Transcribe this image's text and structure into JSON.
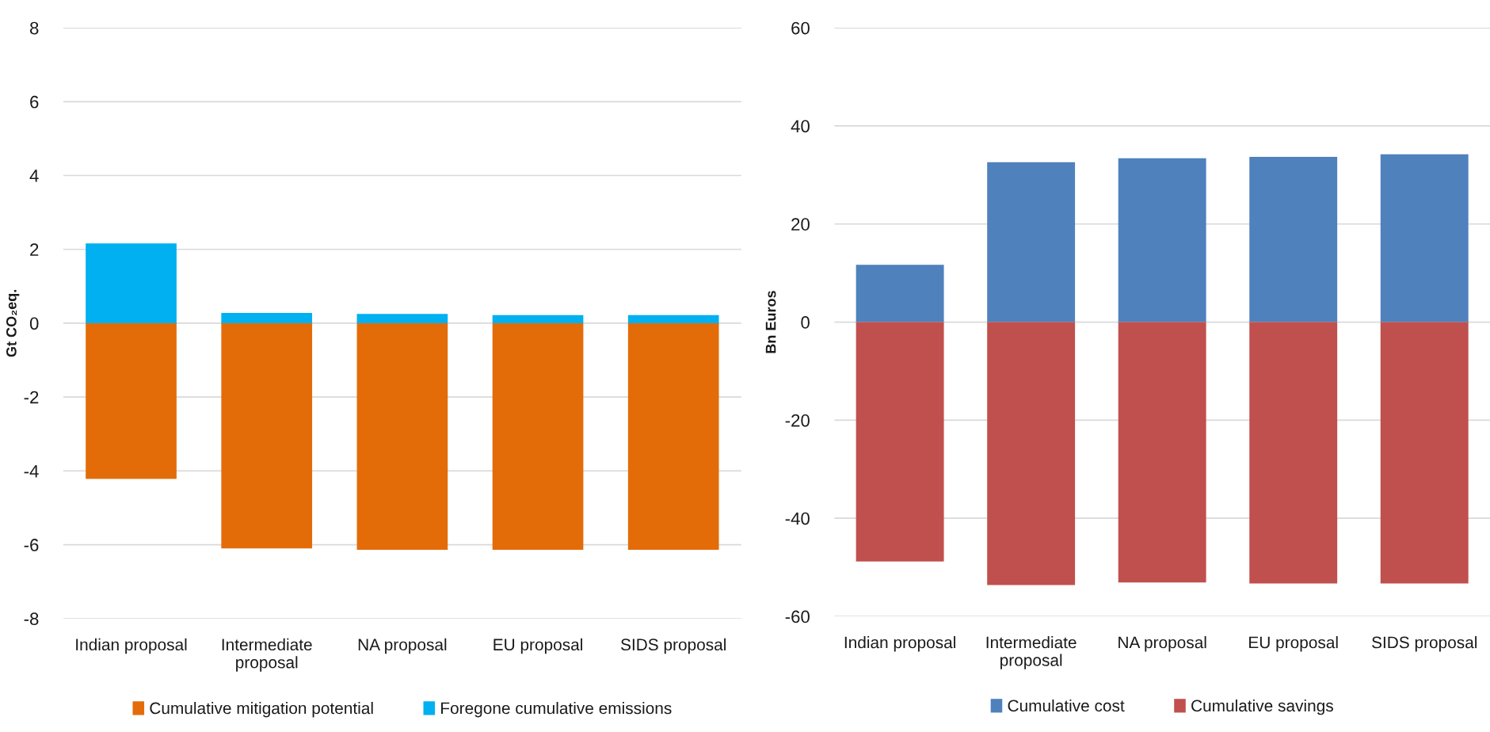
{
  "chart_data": [
    {
      "type": "bar",
      "ylabel": "Gt CO₂eq.",
      "categories": [
        "Indian proposal",
        "Intermediate\nproposal",
        "NA proposal",
        "EU proposal",
        "SIDS proposal"
      ],
      "stacked": true,
      "series": [
        {
          "name": "Cumulative mitigation potential",
          "color": "#e36c09",
          "values": [
            -4.22,
            -6.1,
            -6.14,
            -6.14,
            -6.14
          ]
        },
        {
          "name": "Foregone cumulative emissions",
          "color": "#00b0f0",
          "values": [
            2.16,
            0.28,
            0.25,
            0.22,
            0.22
          ]
        }
      ],
      "ylim": [
        -8,
        8
      ],
      "yticks": [
        -8,
        -6,
        -4,
        -2,
        0,
        2,
        4,
        6,
        8
      ],
      "grid": "y",
      "legend": "bottom"
    },
    {
      "type": "bar",
      "ylabel": "Bn Euros",
      "categories": [
        "Indian proposal",
        "Intermediate\nproposal",
        "NA proposal",
        "EU proposal",
        "SIDS proposal"
      ],
      "stacked": true,
      "series": [
        {
          "name": "Cumulative cost",
          "color": "#4f81bd",
          "values": [
            11.7,
            32.6,
            33.4,
            33.7,
            34.2
          ]
        },
        {
          "name": "Cumulative savings",
          "color": "#c0504d",
          "values": [
            -48.8,
            -53.6,
            -53.1,
            -53.3,
            -53.3
          ]
        }
      ],
      "ylim": [
        -60,
        60
      ],
      "yticks": [
        -60,
        -40,
        -20,
        0,
        20,
        40,
        60
      ],
      "grid": "y",
      "legend": "bottom"
    }
  ]
}
